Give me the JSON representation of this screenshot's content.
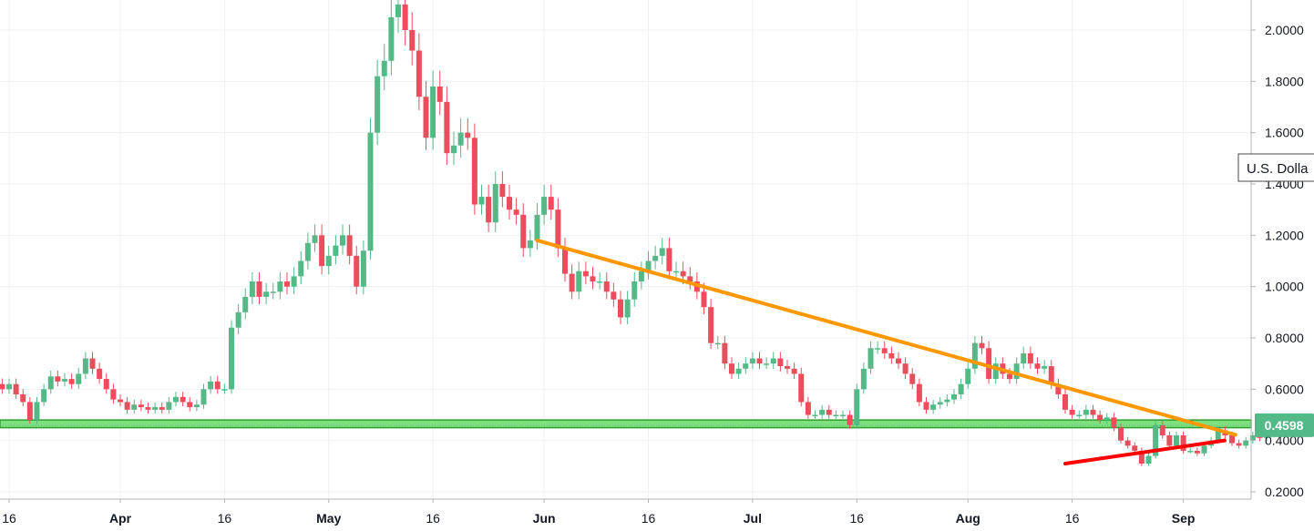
{
  "chart_data": {
    "type": "candlestick",
    "y_axis": {
      "ticks": [
        0.2,
        0.4,
        0.6,
        0.8,
        1.0,
        1.2,
        1.4,
        1.6,
        1.8,
        2.0
      ],
      "tick_labels": [
        "0.2000",
        "0.4000",
        "0.6000",
        "0.8000",
        "1.0000",
        "1.2000",
        "1.4000",
        "1.6000",
        "1.8000",
        "2.0000"
      ],
      "range": [
        0.18,
        2.12
      ]
    },
    "x_axis": {
      "tick_labels": [
        "16",
        "Apr",
        "16",
        "May",
        "16",
        "Jun",
        "16",
        "Jul",
        "16",
        "Aug",
        "16",
        "Sep"
      ],
      "bold_labels": [
        "Apr",
        "May",
        "Jun",
        "Jul",
        "Aug",
        "Sep"
      ],
      "first_date": "2018-03-14",
      "last_date": "2018-09-05"
    },
    "currency_label": "U.S. Dolla",
    "last_price_label": "0.4598",
    "last_price": 0.4598,
    "colors": {
      "up": "#53b987",
      "down": "#eb4d5c",
      "resistance_line": "#ff9800",
      "support_line": "#ff0000",
      "zone_fill": "#7ee07e",
      "zone_border": "#2e9e2e",
      "price_badge": "#53b987",
      "grid": "#eef0f3"
    },
    "annotations": {
      "descending_trendline": {
        "from": {
          "date": "2018-05-31",
          "price": 1.18
        },
        "to": {
          "date": "2018-09-03",
          "price": 0.44
        }
      },
      "rising_support": {
        "from": {
          "date": "2018-08-15",
          "price": 0.31
        },
        "to": {
          "date": "2018-09-03",
          "price": 0.4
        }
      },
      "horizontal_zone": {
        "low": 0.45,
        "high": 0.48
      }
    },
    "closes": [
      0.62,
      0.6,
      0.62,
      0.58,
      0.55,
      0.48,
      0.55,
      0.6,
      0.65,
      0.63,
      0.64,
      0.62,
      0.66,
      0.72,
      0.68,
      0.64,
      0.6,
      0.56,
      0.55,
      0.52,
      0.54,
      0.53,
      0.52,
      0.53,
      0.52,
      0.55,
      0.57,
      0.55,
      0.53,
      0.54,
      0.6,
      0.63,
      0.6,
      0.6,
      0.84,
      0.9,
      0.96,
      1.02,
      0.96,
      0.98,
      0.98,
      1.02,
      1.0,
      1.04,
      1.1,
      1.17,
      1.2,
      1.08,
      1.12,
      1.16,
      1.2,
      1.12,
      1.0,
      1.14,
      1.6,
      1.82,
      1.88,
      2.05,
      2.1,
      2.0,
      1.92,
      1.74,
      1.58,
      1.78,
      1.72,
      1.52,
      1.55,
      1.6,
      1.58,
      1.32,
      1.35,
      1.25,
      1.4,
      1.35,
      1.3,
      1.28,
      1.15,
      1.18,
      1.28,
      1.35,
      1.3,
      1.15,
      1.05,
      0.98,
      1.06,
      1.04,
      1.02,
      1.02,
      0.98,
      0.95,
      0.88,
      0.95,
      1.02,
      1.06,
      1.1,
      1.12,
      1.15,
      1.06,
      1.06,
      1.04,
      1.02,
      0.98,
      0.92,
      0.78,
      0.78,
      0.7,
      0.66,
      0.68,
      0.7,
      0.72,
      0.7,
      0.7,
      0.72,
      0.69,
      0.68,
      0.66,
      0.55,
      0.5,
      0.5,
      0.52,
      0.5,
      0.5,
      0.5,
      0.46,
      0.6,
      0.68,
      0.76,
      0.76,
      0.74,
      0.72,
      0.7,
      0.66,
      0.62,
      0.55,
      0.52,
      0.54,
      0.55,
      0.56,
      0.58,
      0.62,
      0.68,
      0.78,
      0.76,
      0.64,
      0.7,
      0.66,
      0.64,
      0.7,
      0.74,
      0.7,
      0.68,
      0.69,
      0.62,
      0.58,
      0.52,
      0.5,
      0.5,
      0.52,
      0.5,
      0.48,
      0.49,
      0.45,
      0.4,
      0.38,
      0.36,
      0.31,
      0.34,
      0.46,
      0.42,
      0.38,
      0.42,
      0.36,
      0.36,
      0.35,
      0.38,
      0.4,
      0.44,
      0.42,
      0.39,
      0.38,
      0.4,
      0.42,
      0.41,
      0.4598
    ]
  }
}
